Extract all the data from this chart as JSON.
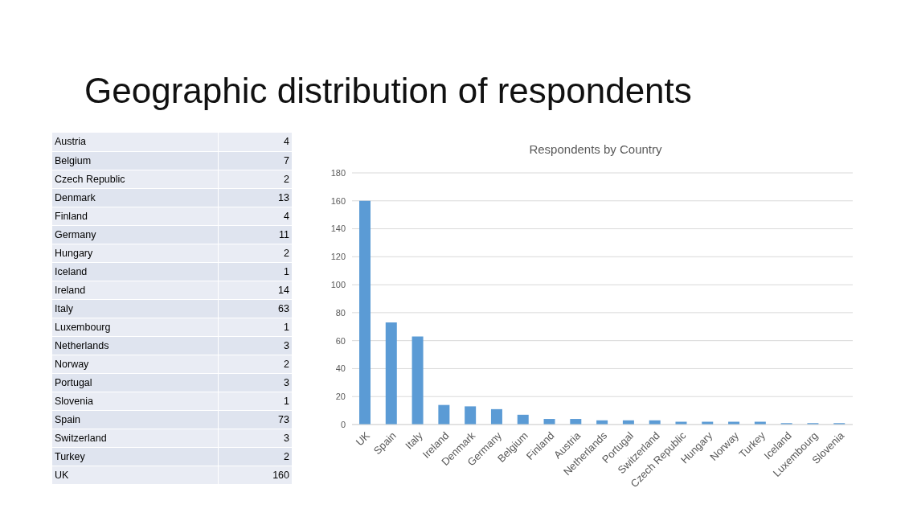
{
  "chart_data": [
    {
      "type": "other",
      "title": "Geographic distribution of respondents",
      "categories": [
        "Austria",
        "Belgium",
        "Czech Republic",
        "Denmark",
        "Finland",
        "Germany",
        "Hungary",
        "Iceland",
        "Ireland",
        "Italy",
        "Luxembourg",
        "Netherlands",
        "Norway",
        "Portugal",
        "Slovenia",
        "Spain",
        "Switzerland",
        "Turkey",
        "UK"
      ],
      "values": [
        4,
        7,
        2,
        13,
        4,
        11,
        2,
        1,
        14,
        63,
        1,
        3,
        2,
        3,
        1,
        73,
        3,
        2,
        160
      ],
      "data_labels": true
    },
    {
      "type": "bar",
      "title": "Respondents by Country",
      "categories": [
        "UK",
        "Spain",
        "Italy",
        "Ireland",
        "Denmark",
        "Germany",
        "Belgium",
        "Finland",
        "Austria",
        "Netherlands",
        "Portugal",
        "Switzerland",
        "Czech Republic",
        "Hungary",
        "Norway",
        "Turkey",
        "Iceland",
        "Luxembourg",
        "Slovenia"
      ],
      "values": [
        160,
        73,
        63,
        14,
        13,
        11,
        7,
        4,
        4,
        3,
        3,
        3,
        2,
        2,
        2,
        2,
        1,
        1,
        1
      ],
      "color": "#5b9bd5",
      "ylim": [
        0,
        180
      ],
      "yticks": [
        0,
        20,
        40,
        60,
        80,
        100,
        120,
        140,
        160,
        180
      ],
      "grid": "y"
    }
  ]
}
